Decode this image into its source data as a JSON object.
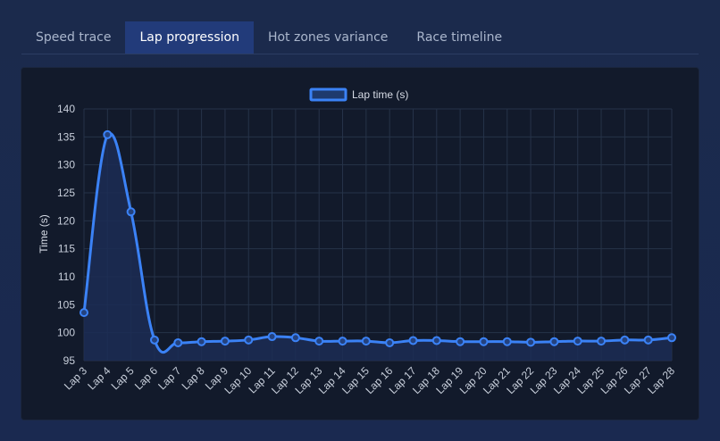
{
  "tabs": [
    {
      "label": "Speed trace",
      "active": false
    },
    {
      "label": "Lap progression",
      "active": true
    },
    {
      "label": "Hot zones variance",
      "active": false
    },
    {
      "label": "Race timeline",
      "active": false
    }
  ],
  "colors": {
    "accent": "#3b82f6",
    "fill": "#1c2d55",
    "grid": "#263349",
    "text": "#d7dce6",
    "tick": "#c8cfdb"
  },
  "chart_data": {
    "type": "line",
    "title": "",
    "xlabel": "",
    "ylabel": "Time (s)",
    "legend": "top",
    "grid": true,
    "ylim": [
      95,
      140
    ],
    "yticks": [
      95,
      100,
      105,
      110,
      115,
      120,
      125,
      130,
      135,
      140
    ],
    "categories": [
      "Lap 3",
      "Lap 4",
      "Lap 5",
      "Lap 6",
      "Lap 7",
      "Lap 8",
      "Lap 9",
      "Lap 10",
      "Lap 11",
      "Lap 12",
      "Lap 13",
      "Lap 14",
      "Lap 15",
      "Lap 16",
      "Lap 17",
      "Lap 18",
      "Lap 19",
      "Lap 20",
      "Lap 21",
      "Lap 22",
      "Lap 23",
      "Lap 24",
      "Lap 25",
      "Lap 26",
      "Lap 27",
      "Lap 28"
    ],
    "series": [
      {
        "name": "Lap time (s)",
        "values": [
          103.6,
          135.4,
          121.6,
          98.7,
          98.2,
          98.4,
          98.5,
          98.7,
          99.3,
          99.1,
          98.5,
          98.5,
          98.5,
          98.2,
          98.6,
          98.6,
          98.4,
          98.4,
          98.4,
          98.3,
          98.4,
          98.5,
          98.5,
          98.7,
          98.7,
          99.1
        ]
      }
    ]
  }
}
